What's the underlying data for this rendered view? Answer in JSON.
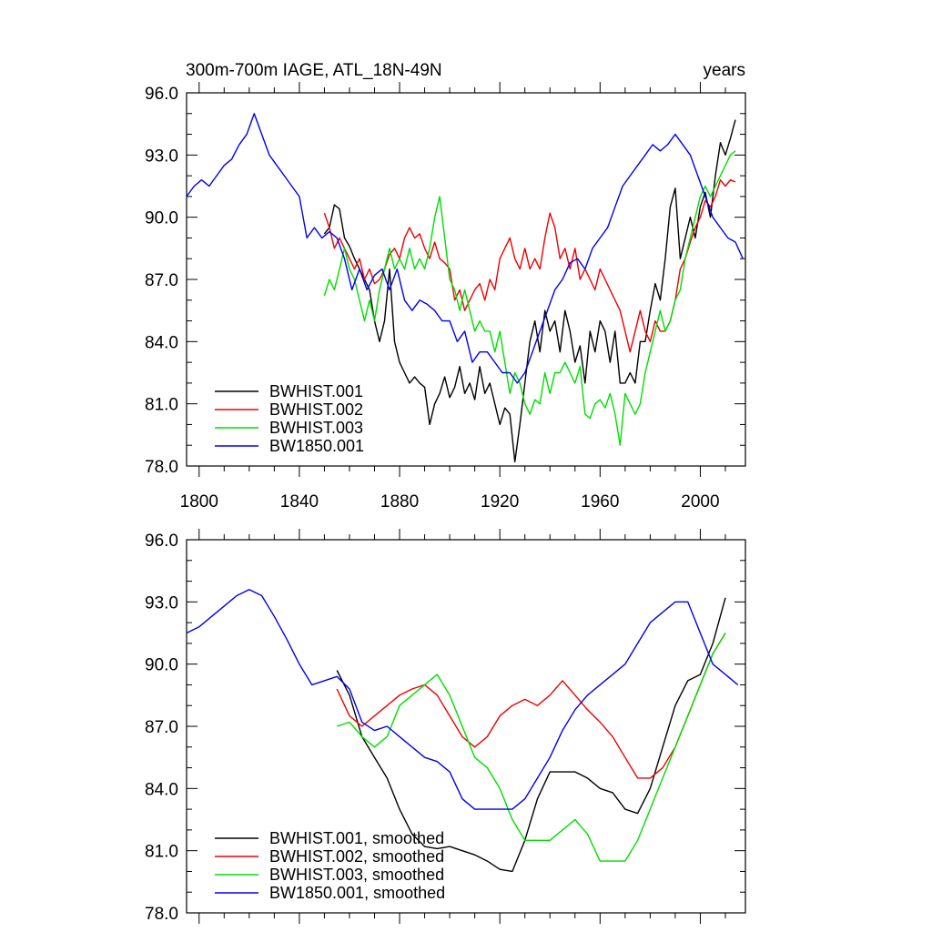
{
  "colors": {
    "BWHIST.001": "#000000",
    "BWHIST.002": "#ee0000",
    "BWHIST.003": "#00dd00",
    "BW1850.001": "#0000ee"
  },
  "chart_data": [
    {
      "type": "line",
      "title": "300m-700m IAGE, ATL_18N-49N",
      "units": "years",
      "xlabel": "",
      "ylabel": "",
      "xlim": [
        1795,
        2018
      ],
      "ylim": [
        78.0,
        96.0
      ],
      "xticks": [
        1800,
        1840,
        1880,
        1920,
        1960,
        2000
      ],
      "yticks": [
        "78.0",
        "81.0",
        "84.0",
        "87.0",
        "90.0",
        "93.0",
        "96.0"
      ],
      "legend_position": "bottom-left",
      "series": [
        {
          "name": "BWHIST.001",
          "x": [
            1850,
            1852,
            1854,
            1856,
            1858,
            1860,
            1862,
            1864,
            1866,
            1868,
            1870,
            1872,
            1874,
            1876,
            1878,
            1880,
            1882,
            1884,
            1886,
            1888,
            1890,
            1892,
            1894,
            1896,
            1898,
            1900,
            1902,
            1904,
            1906,
            1908,
            1910,
            1912,
            1914,
            1916,
            1918,
            1920,
            1922,
            1924,
            1926,
            1928,
            1930,
            1932,
            1934,
            1936,
            1938,
            1940,
            1942,
            1944,
            1946,
            1948,
            1950,
            1952,
            1954,
            1956,
            1958,
            1960,
            1962,
            1964,
            1966,
            1968,
            1970,
            1972,
            1974,
            1976,
            1978,
            1980,
            1982,
            1984,
            1986,
            1988,
            1990,
            1992,
            1994,
            1996,
            1998,
            2000,
            2002,
            2004,
            2006,
            2008,
            2010,
            2012,
            2014
          ],
          "y": [
            89.2,
            89.5,
            90.6,
            90.4,
            89.0,
            88.6,
            88.0,
            87.5,
            87.0,
            86.5,
            85.0,
            84.0,
            85.0,
            87.5,
            84.0,
            83.0,
            82.5,
            82.0,
            82.3,
            82.0,
            81.8,
            80.0,
            81.0,
            81.5,
            82.3,
            81.3,
            81.8,
            82.8,
            81.5,
            82.0,
            81.2,
            82.8,
            81.5,
            82.0,
            81.0,
            80.0,
            80.8,
            80.5,
            78.2,
            80.0,
            82.0,
            84.0,
            85.0,
            83.5,
            85.5,
            84.5,
            85.0,
            83.5,
            85.5,
            84.5,
            83.0,
            83.8,
            82.0,
            84.5,
            83.5,
            85.0,
            84.5,
            83.0,
            84.5,
            82.0,
            82.0,
            82.5,
            82.0,
            84.0,
            84.0,
            85.5,
            86.8,
            86.0,
            88.0,
            90.5,
            91.4,
            88.0,
            89.0,
            90.0,
            89.0,
            90.5,
            91.2,
            90.0,
            92.0,
            93.6,
            93.0,
            93.8,
            94.7
          ]
        },
        {
          "name": "BWHIST.002",
          "x": [
            1850,
            1852,
            1854,
            1856,
            1858,
            1860,
            1862,
            1864,
            1866,
            1868,
            1870,
            1872,
            1874,
            1876,
            1878,
            1880,
            1882,
            1884,
            1886,
            1888,
            1890,
            1892,
            1894,
            1896,
            1898,
            1900,
            1902,
            1904,
            1906,
            1908,
            1910,
            1912,
            1914,
            1916,
            1918,
            1920,
            1922,
            1924,
            1926,
            1928,
            1930,
            1932,
            1934,
            1936,
            1938,
            1940,
            1942,
            1944,
            1946,
            1948,
            1950,
            1952,
            1954,
            1956,
            1958,
            1960,
            1962,
            1964,
            1966,
            1968,
            1970,
            1972,
            1974,
            1976,
            1978,
            1980,
            1982,
            1984,
            1986,
            1988,
            1990,
            1992,
            1994,
            1996,
            1998,
            2000,
            2002,
            2004,
            2006,
            2008,
            2010,
            2012,
            2014
          ],
          "y": [
            90.2,
            89.5,
            88.5,
            89.0,
            88.5,
            88.0,
            87.5,
            88.0,
            87.0,
            87.5,
            86.8,
            87.0,
            87.5,
            88.2,
            88.5,
            88.0,
            89.0,
            89.5,
            89.0,
            89.2,
            88.5,
            88.0,
            88.8,
            88.0,
            87.8,
            87.5,
            86.0,
            86.5,
            85.5,
            86.0,
            86.5,
            86.8,
            86.0,
            87.0,
            86.5,
            88.0,
            88.5,
            89.0,
            88.0,
            87.5,
            88.5,
            87.5,
            88.0,
            87.5,
            89.0,
            90.2,
            89.5,
            88.0,
            88.5,
            87.5,
            88.5,
            87.0,
            87.5,
            87.0,
            86.5,
            87.5,
            87.0,
            86.5,
            86.0,
            85.5,
            84.5,
            83.5,
            84.5,
            85.5,
            84.5,
            84.0,
            85.0,
            84.5,
            84.5,
            85.0,
            86.0,
            87.5,
            88.0,
            88.8,
            89.5,
            90.0,
            90.8,
            90.5,
            91.0,
            91.8,
            91.5,
            91.8,
            91.7
          ]
        },
        {
          "name": "BWHIST.003",
          "x": [
            1850,
            1852,
            1854,
            1856,
            1858,
            1860,
            1862,
            1864,
            1866,
            1868,
            1870,
            1872,
            1874,
            1876,
            1878,
            1880,
            1882,
            1884,
            1886,
            1888,
            1890,
            1892,
            1894,
            1896,
            1898,
            1900,
            1902,
            1904,
            1906,
            1908,
            1910,
            1912,
            1914,
            1916,
            1918,
            1920,
            1922,
            1924,
            1926,
            1928,
            1930,
            1932,
            1934,
            1936,
            1938,
            1940,
            1942,
            1944,
            1946,
            1948,
            1950,
            1952,
            1954,
            1956,
            1958,
            1960,
            1962,
            1964,
            1966,
            1968,
            1970,
            1972,
            1974,
            1976,
            1978,
            1980,
            1982,
            1984,
            1986,
            1988,
            1990,
            1992,
            1994,
            1996,
            1998,
            2000,
            2002,
            2004,
            2006,
            2008,
            2010,
            2012,
            2014
          ],
          "y": [
            86.2,
            87.0,
            86.5,
            87.5,
            88.5,
            87.5,
            87.0,
            86.0,
            85.0,
            86.0,
            85.0,
            86.5,
            87.5,
            88.5,
            87.5,
            88.0,
            87.5,
            88.5,
            87.5,
            88.0,
            87.5,
            88.5,
            90.0,
            91.0,
            89.0,
            87.0,
            86.5,
            85.5,
            86.5,
            85.5,
            84.5,
            85.0,
            84.5,
            84.5,
            83.5,
            84.5,
            83.0,
            81.5,
            82.5,
            82.0,
            81.0,
            80.5,
            81.2,
            81.0,
            82.5,
            81.5,
            82.5,
            82.5,
            83.0,
            82.5,
            82.0,
            82.8,
            80.5,
            80.3,
            81.0,
            81.2,
            80.8,
            81.5,
            80.5,
            79.0,
            81.5,
            81.0,
            80.5,
            81.0,
            82.5,
            83.5,
            84.5,
            85.5,
            84.5,
            85.0,
            86.0,
            86.5,
            88.0,
            89.0,
            90.0,
            91.0,
            91.5,
            91.0,
            91.5,
            92.0,
            92.5,
            93.0,
            93.2
          ]
        },
        {
          "name": "BW1850.001",
          "x": [
            1795,
            1798,
            1801,
            1804,
            1807,
            1810,
            1813,
            1816,
            1819,
            1822,
            1825,
            1828,
            1831,
            1834,
            1837,
            1840,
            1843,
            1846,
            1849,
            1852,
            1855,
            1858,
            1861,
            1864,
            1867,
            1870,
            1873,
            1876,
            1879,
            1882,
            1885,
            1888,
            1891,
            1894,
            1897,
            1900,
            1903,
            1906,
            1909,
            1912,
            1915,
            1918,
            1921,
            1924,
            1927,
            1930,
            1933,
            1936,
            1939,
            1942,
            1945,
            1948,
            1951,
            1954,
            1957,
            1960,
            1963,
            1966,
            1969,
            1972,
            1975,
            1978,
            1981,
            1984,
            1987,
            1990,
            1993,
            1996,
            1999,
            2002,
            2005,
            2008,
            2011,
            2014,
            2017
          ],
          "y": [
            91.0,
            91.5,
            91.8,
            91.5,
            92.0,
            92.5,
            92.8,
            93.5,
            94.0,
            95.0,
            94.0,
            93.0,
            92.5,
            92.0,
            91.5,
            91.0,
            89.0,
            89.5,
            89.0,
            89.3,
            89.0,
            88.0,
            86.5,
            87.5,
            86.5,
            87.2,
            87.5,
            86.5,
            87.5,
            86.0,
            85.5,
            86.0,
            85.8,
            85.5,
            85.0,
            85.0,
            84.0,
            84.5,
            83.0,
            83.5,
            83.5,
            83.0,
            82.5,
            82.5,
            82.0,
            82.5,
            83.5,
            84.5,
            85.5,
            86.5,
            87.0,
            87.8,
            88.0,
            87.5,
            88.5,
            89.0,
            89.5,
            90.5,
            91.5,
            92.0,
            92.5,
            93.0,
            93.5,
            93.2,
            93.5,
            94.0,
            93.5,
            93.0,
            92.0,
            91.0,
            90.0,
            89.5,
            89.0,
            88.8,
            88.0
          ]
        }
      ]
    },
    {
      "type": "line",
      "title": "",
      "units": "",
      "xlabel": "",
      "ylabel": "",
      "xlim": [
        1795,
        2018
      ],
      "ylim": [
        78.0,
        96.0
      ],
      "xticks": [
        1800,
        1840,
        1880,
        1920,
        1960,
        2000
      ],
      "yticks": [
        "78.0",
        "81.0",
        "84.0",
        "87.0",
        "90.0",
        "93.0",
        "96.0"
      ],
      "legend_position": "bottom-left",
      "series": [
        {
          "name": "BWHIST.001, smoothed",
          "x": [
            1855,
            1860,
            1865,
            1870,
            1875,
            1880,
            1885,
            1890,
            1895,
            1900,
            1905,
            1910,
            1915,
            1920,
            1925,
            1930,
            1935,
            1940,
            1945,
            1950,
            1955,
            1960,
            1965,
            1970,
            1975,
            1980,
            1985,
            1990,
            1995,
            2000,
            2005,
            2010
          ],
          "y": [
            89.7,
            88.5,
            86.5,
            85.5,
            84.5,
            83.0,
            81.8,
            81.2,
            81.1,
            81.2,
            81.0,
            80.8,
            80.5,
            80.1,
            80.0,
            81.5,
            83.5,
            84.8,
            84.8,
            84.8,
            84.5,
            84.0,
            83.8,
            83.0,
            82.8,
            84.0,
            86.0,
            88.0,
            89.2,
            89.5,
            91.0,
            93.2
          ]
        },
        {
          "name": "BWHIST.002, smoothed",
          "x": [
            1855,
            1860,
            1865,
            1870,
            1875,
            1880,
            1885,
            1890,
            1895,
            1900,
            1905,
            1910,
            1915,
            1920,
            1925,
            1930,
            1935,
            1940,
            1945,
            1950,
            1955,
            1960,
            1965,
            1970,
            1975,
            1980,
            1985,
            1990,
            1995,
            2000,
            2005,
            2010
          ],
          "y": [
            88.8,
            87.5,
            87.0,
            87.5,
            88.0,
            88.5,
            88.8,
            89.0,
            88.5,
            87.5,
            86.5,
            86.0,
            86.5,
            87.5,
            88.0,
            88.3,
            88.0,
            88.5,
            89.2,
            88.5,
            87.8,
            87.2,
            86.5,
            85.5,
            84.5,
            84.5,
            85.0,
            86.0,
            87.5,
            89.0,
            90.5,
            91.5
          ]
        },
        {
          "name": "BWHIST.003, smoothed",
          "x": [
            1855,
            1860,
            1865,
            1870,
            1875,
            1880,
            1885,
            1890,
            1895,
            1900,
            1905,
            1910,
            1915,
            1920,
            1925,
            1930,
            1935,
            1940,
            1945,
            1950,
            1955,
            1960,
            1965,
            1970,
            1975,
            1980,
            1985,
            1990,
            1995,
            2000,
            2005,
            2010
          ],
          "y": [
            87.0,
            87.2,
            86.5,
            86.0,
            86.5,
            88.0,
            88.5,
            89.0,
            89.5,
            88.5,
            87.0,
            85.5,
            85.0,
            84.0,
            82.5,
            81.5,
            81.5,
            81.5,
            82.0,
            82.5,
            81.8,
            80.5,
            80.5,
            80.5,
            81.5,
            83.0,
            84.5,
            86.0,
            87.5,
            89.0,
            90.5,
            91.5
          ]
        },
        {
          "name": "BW1850.001, smoothed",
          "x": [
            1795,
            1800,
            1805,
            1810,
            1815,
            1820,
            1825,
            1830,
            1835,
            1840,
            1845,
            1850,
            1855,
            1860,
            1865,
            1870,
            1875,
            1880,
            1885,
            1890,
            1895,
            1900,
            1905,
            1910,
            1915,
            1920,
            1925,
            1930,
            1935,
            1940,
            1945,
            1950,
            1955,
            1960,
            1965,
            1970,
            1975,
            1980,
            1985,
            1990,
            1995,
            2000,
            2005,
            2010,
            2015
          ],
          "y": [
            91.5,
            91.8,
            92.3,
            92.8,
            93.3,
            93.6,
            93.3,
            92.3,
            91.2,
            90.0,
            89.0,
            89.2,
            89.4,
            88.8,
            87.2,
            86.8,
            87.0,
            86.5,
            86.0,
            85.5,
            85.3,
            84.8,
            83.5,
            83.0,
            83.0,
            83.0,
            83.0,
            83.5,
            84.5,
            85.5,
            86.8,
            87.8,
            88.5,
            89.0,
            89.5,
            90.0,
            91.0,
            92.0,
            92.5,
            93.0,
            93.0,
            91.5,
            90.0,
            89.5,
            89.0
          ]
        }
      ]
    }
  ]
}
